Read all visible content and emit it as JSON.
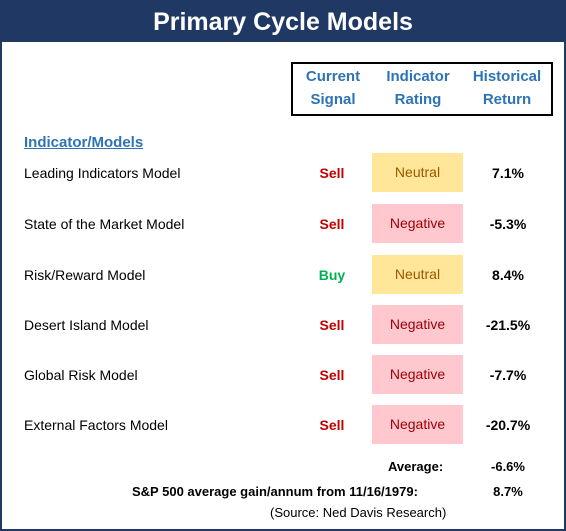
{
  "title": "Primary Cycle Models",
  "headers": {
    "signal": [
      "Current",
      "Signal"
    ],
    "rating": [
      "Indicator",
      "Rating"
    ],
    "return": [
      "Historical",
      "Return"
    ]
  },
  "section_label": "Indicator/Models",
  "colors": {
    "title_bg": "#1f3864",
    "header_text": "#2e74b5",
    "sell": "#c00000",
    "buy": "#00b050",
    "neutral_bg": "#ffe699",
    "negative_bg": "#ffc7ce"
  },
  "rows": [
    {
      "model": "Leading Indicators Model",
      "signal": "Sell",
      "rating": "Neutral",
      "return": "7.1%"
    },
    {
      "model": "State of the Market  Model",
      "signal": "Sell",
      "rating": "Negative",
      "return": "-5.3%"
    },
    {
      "model": "Risk/Reward Model",
      "signal": "Buy",
      "rating": "Neutral",
      "return": "8.4%"
    },
    {
      "model": "Desert Island Model",
      "signal": "Sell",
      "rating": "Negative",
      "return": "-21.5%"
    },
    {
      "model": "Global Risk Model",
      "signal": "Sell",
      "rating": "Negative",
      "return": "-7.7%"
    },
    {
      "model": "External Factors Model",
      "signal": "Sell",
      "rating": "Negative",
      "return": "-20.7%"
    }
  ],
  "average": {
    "label": "Average:",
    "value": "-6.6%"
  },
  "sp500": {
    "label": "S&P 500 average gain/annum from 11/16/1979:",
    "value": "8.7%"
  },
  "source": "(Source: Ned Davis Research)"
}
